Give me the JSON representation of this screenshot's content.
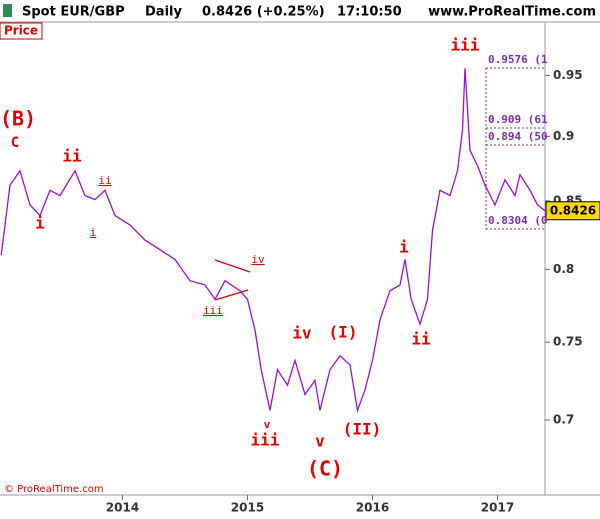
{
  "chart_data": {
    "type": "line",
    "instrument": "Spot EUR/GBP",
    "period": "Daily",
    "quote": "0.8426 (+0.25%)",
    "time": "17:10:50",
    "site": "www.ProRealTime.com",
    "panel_label": "Price",
    "footer": "© ProRealTime.com",
    "log_scale": true,
    "color": "#9a10d6",
    "x": [
      2013.03,
      2013.1,
      2013.18,
      2013.26,
      2013.34,
      2013.42,
      2013.5,
      2013.62,
      2013.7,
      2013.78,
      2013.86,
      2013.94,
      2014.06,
      2014.18,
      2014.3,
      2014.42,
      2014.54,
      2014.66,
      2014.74,
      2014.82,
      2014.94,
      2015.0,
      2015.06,
      2015.11,
      2015.18,
      2015.24,
      2015.32,
      2015.38,
      2015.46,
      2015.54,
      2015.58,
      2015.66,
      2015.74,
      2015.82,
      2015.88,
      2015.94,
      2016.0,
      2016.06,
      2016.14,
      2016.22,
      2016.26,
      2016.31,
      2016.38,
      2016.44,
      2016.48,
      2016.54,
      2016.62,
      2016.68,
      2016.72,
      2016.74,
      2016.78,
      2016.84,
      2016.9,
      2016.98,
      2017.06,
      2017.14,
      2017.18,
      2017.26,
      2017.32,
      2017.38
    ],
    "values": [
      0.81,
      0.862,
      0.873,
      0.847,
      0.839,
      0.858,
      0.854,
      0.873,
      0.854,
      0.851,
      0.858,
      0.839,
      0.832,
      0.821,
      0.814,
      0.807,
      0.792,
      0.789,
      0.779,
      0.792,
      0.785,
      0.779,
      0.758,
      0.732,
      0.706,
      0.732,
      0.722,
      0.738,
      0.716,
      0.725,
      0.706,
      0.732,
      0.741,
      0.735,
      0.706,
      0.719,
      0.738,
      0.765,
      0.785,
      0.789,
      0.807,
      0.779,
      0.762,
      0.779,
      0.828,
      0.858,
      0.854,
      0.873,
      0.905,
      0.956,
      0.889,
      0.877,
      0.862,
      0.847,
      0.866,
      0.854,
      0.87,
      0.858,
      0.847,
      0.8426
    ],
    "last_value": 0.8426,
    "xlim": [
      2013.02,
      2017.38
    ],
    "xticks": [
      2014,
      2015,
      2016,
      2017
    ],
    "ylim": [
      0.655,
      0.996
    ],
    "yticks": [
      0.7,
      0.75,
      0.8,
      0.85,
      0.9,
      0.95
    ],
    "annotations": [
      "(B)",
      "C",
      "ii",
      "i",
      "ii",
      "i",
      "iv",
      "iii",
      "v",
      "iii",
      "iv",
      "v",
      "(C)",
      "(I)",
      "(II)",
      "i",
      "ii",
      "iii"
    ],
    "fib_labels": [
      "0.9576 (1",
      "0.909 (61",
      "0.894 (50",
      "0.8304 (0"
    ]
  }
}
